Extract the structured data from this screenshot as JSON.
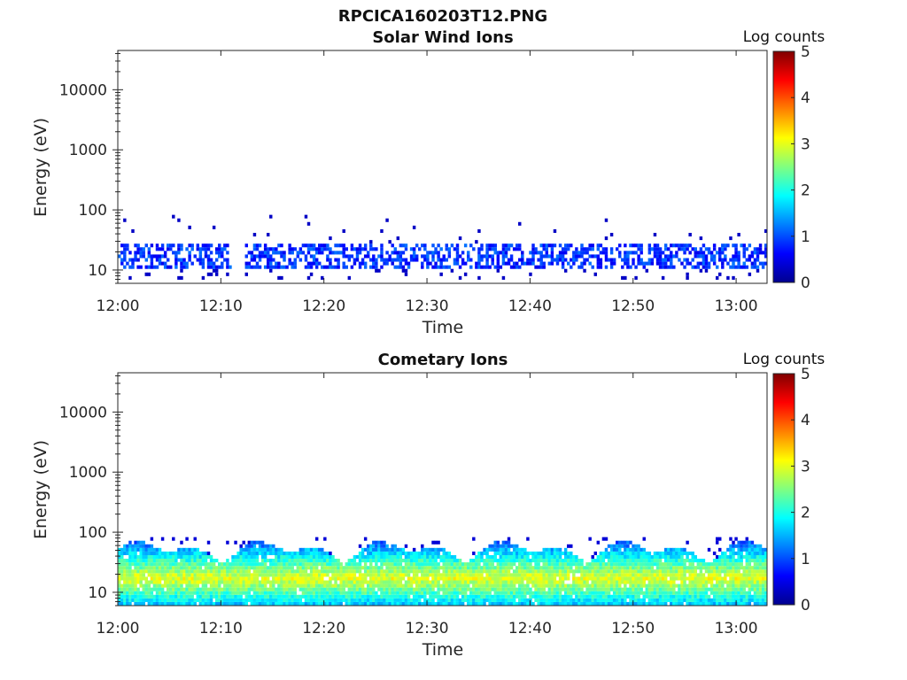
{
  "figure": {
    "title": "RPCICA160203T12.PNG"
  },
  "colors": {
    "axis": "#262626",
    "colormap": [
      "#00008f",
      "#0000ff",
      "#0080ff",
      "#00ffff",
      "#80ff80",
      "#ffff00",
      "#ff8000",
      "#ff0000",
      "#800000"
    ]
  },
  "chart_data": [
    {
      "type": "heatmap",
      "title": "Solar Wind Ions",
      "xlabel": "Time",
      "ylabel": "Energy (eV)",
      "x_ticks": [
        "12:00",
        "12:10",
        "12:20",
        "12:30",
        "12:40",
        "12:50",
        "13:00"
      ],
      "x_range": [
        "12:00",
        "13:03"
      ],
      "y_scale": "log",
      "y_ticks": [
        10,
        100,
        1000,
        10000
      ],
      "y_tick_labels": [
        "10",
        "100",
        "1000",
        "10000"
      ],
      "y_range": [
        6,
        45000
      ],
      "colorbar": {
        "label": "Log counts",
        "range": [
          0,
          5
        ],
        "ticks": [
          "0",
          "1",
          "2",
          "3",
          "4",
          "5"
        ]
      },
      "band": {
        "energy_low": 10,
        "energy_high": 25,
        "peak_log_counts": 1.2,
        "typical_log_counts": 0.5,
        "occupancy": 0.55
      },
      "sparse_energy_max": 75
    },
    {
      "type": "heatmap",
      "title": "Cometary Ions",
      "xlabel": "Time",
      "ylabel": "Energy (eV)",
      "x_ticks": [
        "12:00",
        "12:10",
        "12:20",
        "12:30",
        "12:40",
        "12:50",
        "13:00"
      ],
      "x_range": [
        "12:00",
        "13:03"
      ],
      "y_scale": "log",
      "y_ticks": [
        10,
        100,
        1000,
        10000
      ],
      "y_tick_labels": [
        "10",
        "100",
        "1000",
        "10000"
      ],
      "y_range": [
        6,
        45000
      ],
      "colorbar": {
        "label": "Log counts",
        "range": [
          0,
          5
        ],
        "ticks": [
          "0",
          "1",
          "2",
          "3",
          "4",
          "5"
        ]
      },
      "band": {
        "energy_low": 6,
        "energy_high": 80,
        "core_energy": 16,
        "peak_log_counts": 3.0,
        "typical_log_counts": 2.0,
        "occupancy": 0.95
      },
      "sparse_energy_max": 80
    }
  ]
}
